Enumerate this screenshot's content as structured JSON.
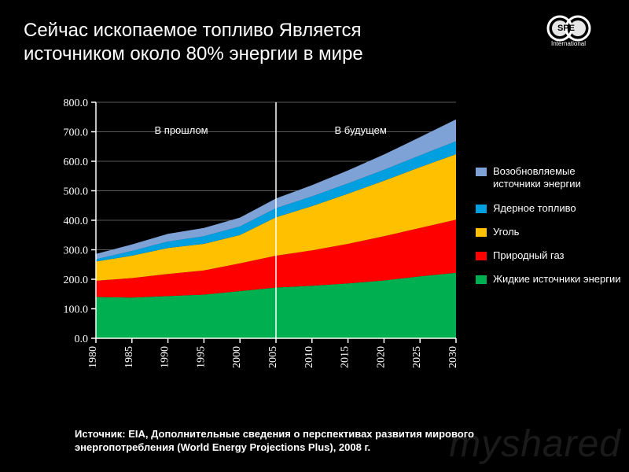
{
  "title": "Сейчас ископаемое топливо Является источником около 80% энергии в мире",
  "logo": {
    "org": "SPE",
    "sub": "International"
  },
  "source": "Источник: EIA, Дополнительные сведения о перспективах развития мирового энергопотребления (World Energy Projections Plus), 2008 г.",
  "watermark": "myshared",
  "annotations": {
    "past": "В прошлом",
    "future": "В будущем"
  },
  "legend": [
    {
      "label": "Возобновляемые источники энергии",
      "color": "#7fa2d6"
    },
    {
      "label": "Ядерное топливо",
      "color": "#00a0e0"
    },
    {
      "label": "Уголь",
      "color": "#ffc000"
    },
    {
      "label": "Природный газ",
      "color": "#ff0000"
    },
    {
      "label": "Жидкие источники энергии",
      "color": "#00b050"
    }
  ],
  "chart": {
    "type": "stacked-area",
    "background_color": "#000000",
    "axis_color": "#ffffff",
    "grid_color": "#595959",
    "axis_font_family": "Georgia",
    "axis_tick_fontsize": 14,
    "ylabel_fontsize": 14,
    "ylim": [
      0,
      800
    ],
    "ytick_step": 100,
    "ytick_labels": [
      "0.0",
      "100.0",
      "200.0",
      "300.0",
      "400.0",
      "500.0",
      "600.0",
      "700.0",
      "800.0"
    ],
    "x_categories": [
      "1980",
      "1985",
      "1990",
      "1995",
      "2000",
      "2005",
      "2010",
      "2015",
      "2020",
      "2025",
      "2030"
    ],
    "present_divider_x": "2005",
    "series_order": [
      "liquid",
      "gas",
      "coal",
      "nuclear",
      "renewable"
    ],
    "series": {
      "liquid": {
        "color": "#00b050",
        "values": [
          140,
          138,
          143,
          148,
          160,
          172,
          178,
          186,
          196,
          210,
          222
        ]
      },
      "gas": {
        "color": "#ff0000",
        "values": [
          55,
          66,
          75,
          82,
          94,
          108,
          120,
          134,
          150,
          164,
          180
        ]
      },
      "coal": {
        "color": "#ffc000",
        "values": [
          65,
          76,
          88,
          90,
          96,
          130,
          150,
          170,
          188,
          206,
          222
        ]
      },
      "nuclear": {
        "color": "#00a0e0",
        "values": [
          8,
          16,
          22,
          26,
          29,
          31,
          33,
          35,
          37,
          40,
          44
        ]
      },
      "renewable": {
        "color": "#7fa2d6",
        "values": [
          18,
          22,
          26,
          28,
          30,
          33,
          38,
          44,
          52,
          62,
          74
        ]
      }
    }
  }
}
